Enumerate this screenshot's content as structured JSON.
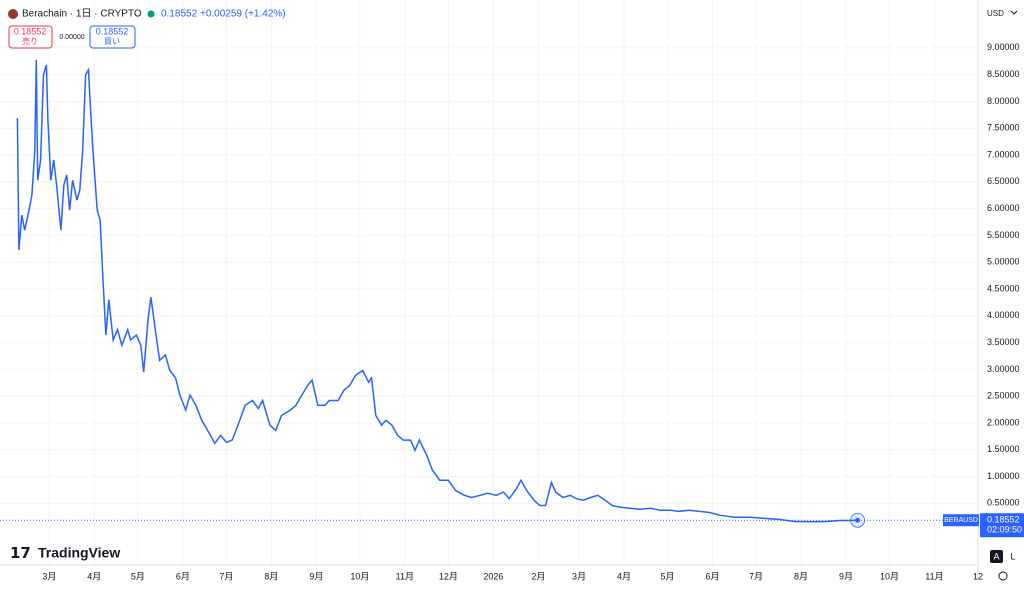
{
  "header": {
    "symbol": "Berachain · 1日 · CRYPTO",
    "price": "0.18552",
    "change": "+0.00259 (+1.42%)",
    "sell_price": "0.18552",
    "sell_label": "売り",
    "spread": "0.00000",
    "buy_price": "0.18552",
    "buy_label": "買い",
    "currency": "USD"
  },
  "footer": {
    "brand": "TradingView",
    "scale_a": "A",
    "scale_l": "L"
  },
  "chart_data": {
    "type": "line",
    "grid": true,
    "x": [
      6,
      7,
      9,
      11,
      14,
      16,
      18,
      19,
      20,
      22,
      24,
      26,
      27,
      29,
      31,
      33,
      36,
      38,
      40,
      42,
      44,
      47,
      49,
      51,
      53,
      55,
      56,
      58,
      61,
      63,
      65,
      67,
      69,
      72,
      75,
      78,
      82,
      84,
      88,
      91,
      93,
      96,
      98,
      101,
      104,
      108,
      111,
      115,
      118,
      122,
      125,
      129,
      133,
      139,
      142,
      146,
      150,
      154,
      158,
      163,
      168,
      172,
      175,
      180,
      184,
      188,
      194,
      198,
      202,
      206,
      209,
      213,
      218,
      221,
      227,
      231,
      235,
      239,
      244,
      248,
      250,
      253,
      257,
      260,
      264,
      268,
      272,
      277,
      280,
      283,
      288,
      292,
      297,
      303,
      308,
      314,
      319,
      325,
      330,
      336,
      341,
      345,
      350,
      353,
      357,
      362,
      366,
      370,
      374,
      377,
      382,
      387,
      391,
      396,
      401,
      406,
      411,
      416,
      421,
      428,
      435,
      442,
      449,
      456,
      462,
      469,
      476,
      483,
      490,
      500,
      511,
      521,
      531,
      542,
      552,
      562,
      573,
      579,
      585
    ],
    "series": [
      {
        "name": "BERAUSD",
        "color": "#2962ff",
        "values": [
          7.69,
          5.23,
          5.88,
          5.6,
          5.97,
          6.25,
          7.09,
          8.78,
          6.53,
          6.91,
          8.5,
          8.68,
          7.65,
          6.53,
          6.91,
          6.44,
          5.6,
          6.44,
          6.63,
          5.97,
          6.53,
          6.16,
          6.35,
          7.09,
          8.5,
          8.59,
          8.03,
          7.09,
          5.97,
          5.79,
          4.67,
          3.64,
          4.3,
          3.55,
          3.74,
          3.45,
          3.74,
          3.55,
          3.64,
          3.45,
          2.95,
          3.92,
          4.35,
          3.74,
          3.17,
          3.27,
          2.98,
          2.84,
          2.52,
          2.24,
          2.52,
          2.33,
          2.05,
          1.77,
          1.62,
          1.77,
          1.64,
          1.68,
          1.96,
          2.33,
          2.42,
          2.27,
          2.42,
          1.96,
          1.86,
          2.14,
          2.24,
          2.33,
          2.52,
          2.7,
          2.8,
          2.33,
          2.33,
          2.42,
          2.42,
          2.61,
          2.7,
          2.89,
          2.98,
          2.76,
          2.84,
          2.14,
          1.96,
          2.05,
          1.96,
          1.77,
          1.68,
          1.68,
          1.49,
          1.68,
          1.4,
          1.12,
          0.93,
          0.93,
          0.74,
          0.65,
          0.61,
          0.65,
          0.69,
          0.65,
          0.71,
          0.59,
          0.78,
          0.93,
          0.74,
          0.56,
          0.46,
          0.46,
          0.89,
          0.71,
          0.61,
          0.65,
          0.59,
          0.56,
          0.61,
          0.65,
          0.56,
          0.46,
          0.43,
          0.41,
          0.39,
          0.41,
          0.37,
          0.37,
          0.35,
          0.37,
          0.35,
          0.33,
          0.28,
          0.24,
          0.24,
          0.22,
          0.2,
          0.16,
          0.16,
          0.16,
          0.18,
          0.18,
          0.18552
        ]
      }
    ],
    "last_price_label": "0.18552",
    "countdown": "02:09:50",
    "xlim": [
      -6,
      668
    ],
    "xticks": [
      {
        "value": 28,
        "label": "3月"
      },
      {
        "value": 59,
        "label": "4月"
      },
      {
        "value": 89,
        "label": "5月"
      },
      {
        "value": 120,
        "label": "6月"
      },
      {
        "value": 150,
        "label": "7月"
      },
      {
        "value": 181,
        "label": "8月"
      },
      {
        "value": 212,
        "label": "9月"
      },
      {
        "value": 242,
        "label": "10月"
      },
      {
        "value": 273,
        "label": "11月"
      },
      {
        "value": 303,
        "label": "12月"
      },
      {
        "value": 334,
        "label": "2026"
      },
      {
        "value": 365,
        "label": "2月"
      },
      {
        "value": 393,
        "label": "3月"
      },
      {
        "value": 424,
        "label": "4月"
      },
      {
        "value": 454,
        "label": "5月"
      },
      {
        "value": 485,
        "label": "6月"
      },
      {
        "value": 515,
        "label": "7月"
      },
      {
        "value": 546,
        "label": "8月"
      },
      {
        "value": 577,
        "label": "9月"
      },
      {
        "value": 607,
        "label": "10月"
      },
      {
        "value": 638,
        "label": "11月"
      },
      {
        "value": 668,
        "label": "12"
      }
    ],
    "ylim": [
      -0.65,
      9.8
    ],
    "yticks": [
      {
        "value": 0.5,
        "label": "0.50000"
      },
      {
        "value": 1,
        "label": "1.00000"
      },
      {
        "value": 1.5,
        "label": "1.50000"
      },
      {
        "value": 2,
        "label": "2.00000"
      },
      {
        "value": 2.5,
        "label": "2.50000"
      },
      {
        "value": 3,
        "label": "3.00000"
      },
      {
        "value": 3.5,
        "label": "3.50000"
      },
      {
        "value": 4,
        "label": "4.00000"
      },
      {
        "value": 4.5,
        "label": "4.50000"
      },
      {
        "value": 5,
        "label": "5.00000"
      },
      {
        "value": 5.5,
        "label": "5.50000"
      },
      {
        "value": 6,
        "label": "6.00000"
      },
      {
        "value": 6.5,
        "label": "6.50000"
      },
      {
        "value": 7,
        "label": "7.00000"
      },
      {
        "value": 7.5,
        "label": "7.50000"
      },
      {
        "value": 8,
        "label": "8.00000"
      },
      {
        "value": 8.5,
        "label": "8.50000"
      },
      {
        "value": 9,
        "label": "9.00000"
      }
    ]
  }
}
